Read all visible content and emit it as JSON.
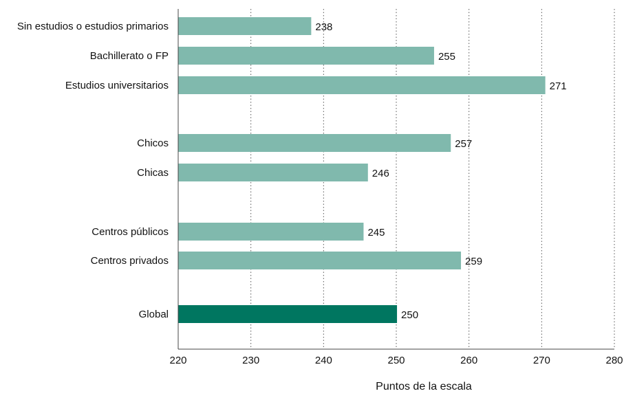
{
  "chart_data": {
    "type": "bar",
    "orientation": "horizontal",
    "categories": [
      "Sin estudios o estudios primarios",
      "Bachillerato o FP",
      "Estudios universitarios",
      "Chicos",
      "Chicas",
      "Centros públicos",
      "Centros privados",
      "Global"
    ],
    "groups": [
      [
        "Sin estudios o estudios primarios",
        "Bachillerato o FP",
        "Estudios universitarios"
      ],
      [
        "Chicos",
        "Chicas"
      ],
      [
        "Centros públicos",
        "Centros privados"
      ],
      [
        "Global"
      ]
    ],
    "values": [
      238.3,
      255.2,
      270.5,
      257.5,
      246.1,
      245.5,
      258.9,
      250.1
    ],
    "value_labels": [
      "238",
      "255",
      "271",
      "257",
      "246",
      "245",
      "259",
      "250"
    ],
    "xlim": [
      220,
      280
    ],
    "xticks": [
      "220",
      "230",
      "240",
      "250",
      "260",
      "270",
      "280"
    ],
    "xlabel": "Puntos de la escala",
    "ylabel": "",
    "title": "",
    "grid": "vertical dotted",
    "colors": {
      "bar": "#80b9ad",
      "highlight": "#007660",
      "highlight_category": "Global"
    }
  }
}
